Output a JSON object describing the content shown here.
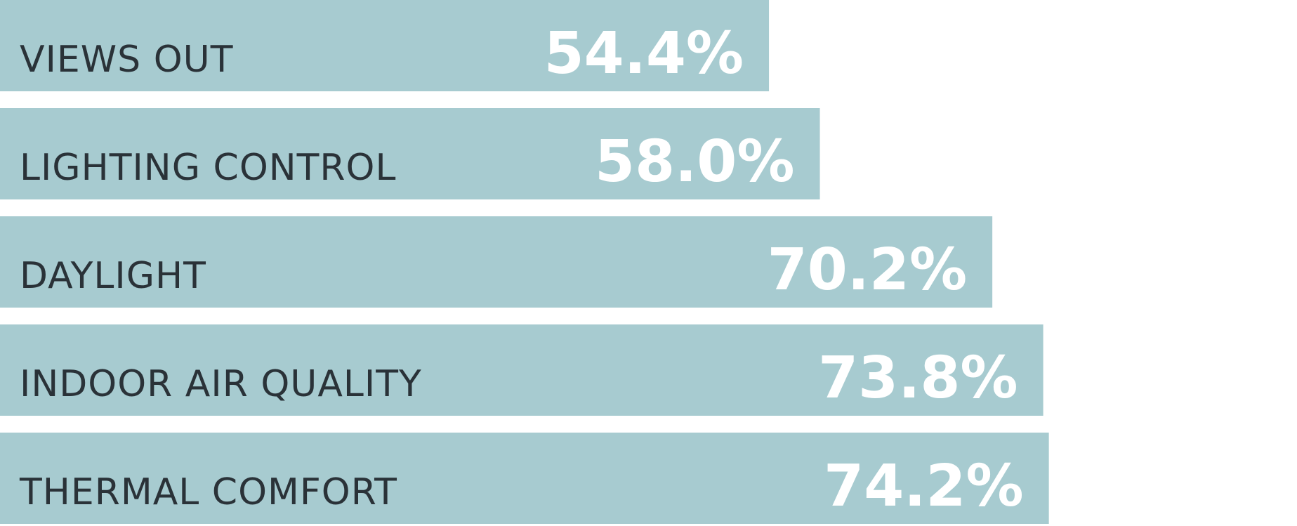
{
  "chart_data": {
    "type": "bar",
    "orientation": "horizontal",
    "categories": [
      "VIEWS OUT",
      "LIGHTING CONTROL",
      "DAYLIGHT",
      "INDOOR AIR QUALITY",
      "THERMAL COMFORT"
    ],
    "values": [
      54.4,
      58.0,
      70.2,
      73.8,
      74.2
    ],
    "value_labels": [
      "54.4%",
      "58.0%",
      "70.2%",
      "73.8%",
      "74.2%"
    ],
    "color": "#a7cbd0"
  }
}
